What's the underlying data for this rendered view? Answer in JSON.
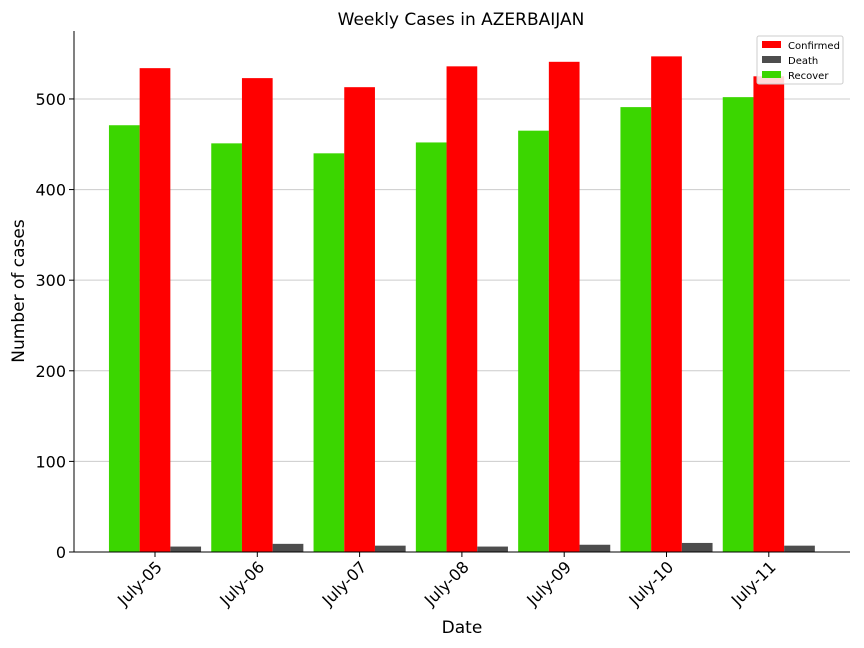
{
  "chart_data": {
    "type": "bar",
    "title": "Weekly Cases in AZERBAIJAN",
    "xlabel": "Date",
    "ylabel": "Number of cases",
    "categories": [
      "July-05",
      "July-06",
      "July-07",
      "July-08",
      "July-09",
      "July-10",
      "July-11"
    ],
    "series": [
      {
        "name": "Recover",
        "color": "#3bd600",
        "values": [
          471,
          451,
          440,
          452,
          465,
          491,
          502
        ]
      },
      {
        "name": "Confirmed",
        "color": "#ff0000",
        "values": [
          534,
          523,
          513,
          536,
          541,
          547,
          525
        ]
      },
      {
        "name": "Death",
        "color": "#4d4d4d",
        "values": [
          6,
          9,
          7,
          6,
          8,
          10,
          7
        ]
      }
    ],
    "legend_order": [
      "Confirmed",
      "Death",
      "Recover"
    ],
    "ylim": [
      0,
      575
    ],
    "yticks": [
      0,
      100,
      200,
      300,
      400,
      500
    ],
    "grid": "y",
    "legend_position": "top-right"
  }
}
